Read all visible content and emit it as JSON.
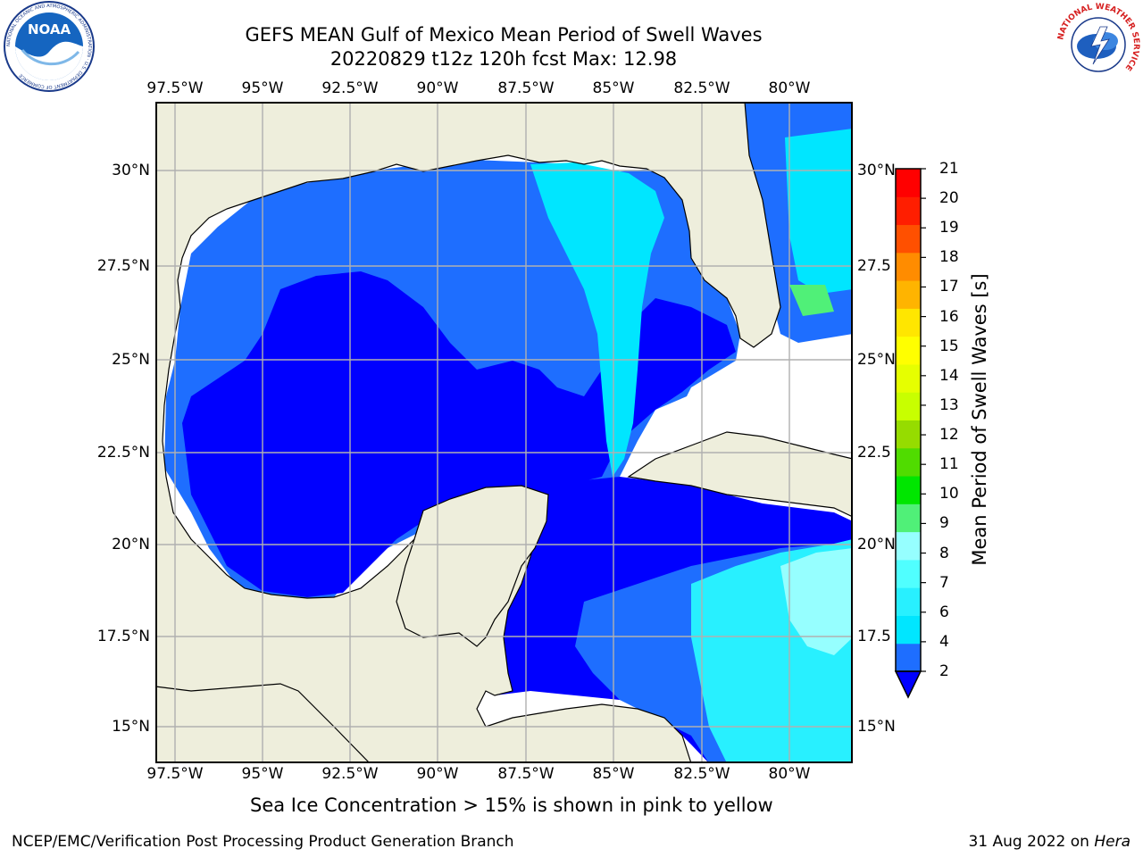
{
  "title": {
    "line1": "GEFS MEAN Gulf of Mexico Mean Period of Swell Waves",
    "line2": "20220829 t12z 120h fcst   Max: 12.98"
  },
  "map": {
    "lon_labels": [
      "97.5°W",
      "95°W",
      "92.5°W",
      "90°W",
      "87.5°W",
      "85°W",
      "82.5°W",
      "80°W"
    ],
    "lat_labels": [
      "30°N",
      "27.5°N",
      "25°N",
      "22.5°N",
      "20°N",
      "17.5°N",
      "15°N"
    ],
    "lat_labels_right": [
      "30°N",
      "27.5",
      "25°N",
      "22.5",
      "20°N",
      "17.5",
      "15°N"
    ],
    "colors": {
      "land": "#eeeedc",
      "nodata": "#ffffff",
      "grid": "#b0b0b0"
    }
  },
  "colorbar": {
    "label": "Mean Period of Swell Waves [s]",
    "ticks": [
      "21",
      "20",
      "19",
      "18",
      "17",
      "16",
      "15",
      "14",
      "13",
      "12",
      "11",
      "10",
      "9",
      "8",
      "7",
      "6",
      "4",
      "2"
    ],
    "colors": [
      "#0000ff",
      "#1e6eff",
      "#00e6ff",
      "#28f0ff",
      "#50ffff",
      "#96ffff",
      "#50f078",
      "#00e600",
      "#50dc00",
      "#96dc00",
      "#c8ff00",
      "#e6ff00",
      "#ffff00",
      "#ffe600",
      "#ffb400",
      "#ff8c00",
      "#ff5000",
      "#ff1e00",
      "#ff0000"
    ]
  },
  "footnote": "Sea Ice Concentration > 15% is shown in pink to yellow",
  "footer": {
    "left": "NCEP/EMC/Verification Post Processing Product Generation Branch",
    "right_date": "31 Aug 2022 on ",
    "right_host": "Hera"
  },
  "logos": {
    "noaa_text": "NOAA",
    "noaa_ring": "NATIONAL OCEANIC AND ATMOSPHERIC ADMINISTRATION · U.S. DEPARTMENT OF COMMERCE",
    "nws_ring": "NATIONAL WEATHER SERVICE"
  }
}
